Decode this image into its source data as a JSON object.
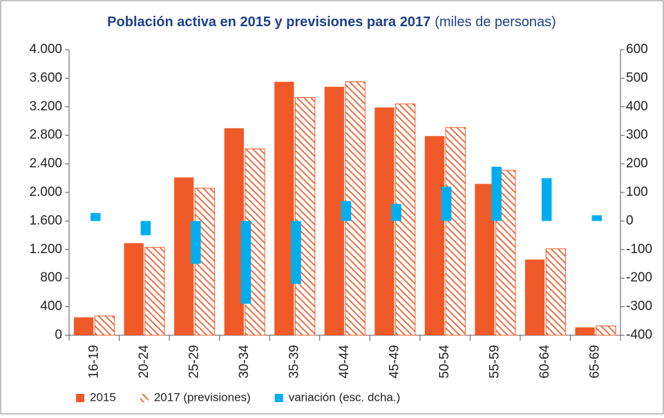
{
  "chart_data": {
    "type": "bar",
    "title": "Población activa en 2015 y previsiones para 2017",
    "subtitle": "(miles de personas)",
    "categories": [
      "16-19",
      "20-24",
      "25-29",
      "30-34",
      "35-39",
      "40-44",
      "45-49",
      "50-54",
      "55-59",
      "60-64",
      "65-69"
    ],
    "series": [
      {
        "name": "2015",
        "color": "#f05a28",
        "values": [
          250,
          1290,
          2210,
          2900,
          3550,
          3480,
          3190,
          2790,
          2120,
          1060,
          110
        ]
      },
      {
        "name": "2017 (previsiones)",
        "color": "#f05a28",
        "pattern": "hatch",
        "values": [
          270,
          1230,
          2060,
          2610,
          3330,
          3550,
          3240,
          2910,
          2310,
          1210,
          130
        ]
      },
      {
        "name": "variación (esc. dcha.)",
        "color": "#00aeef",
        "axis": "y2",
        "values": [
          28,
          -50,
          -150,
          -290,
          -220,
          70,
          60,
          120,
          190,
          150,
          20
        ]
      }
    ],
    "ylim": [
      0,
      4000
    ],
    "yticks": [
      {
        "value": 0,
        "label": "0"
      },
      {
        "value": 400,
        "label": "400"
      },
      {
        "value": 800,
        "label": "800"
      },
      {
        "value": 1200,
        "label": "1.200"
      },
      {
        "value": 1600,
        "label": "1.600"
      },
      {
        "value": 2000,
        "label": "2.000"
      },
      {
        "value": 2400,
        "label": "2.400"
      },
      {
        "value": 2800,
        "label": "2.800"
      },
      {
        "value": 3200,
        "label": "3.200"
      },
      {
        "value": 3600,
        "label": "3.600"
      },
      {
        "value": 4000,
        "label": "4.000"
      }
    ],
    "y2lim": [
      -400,
      600
    ],
    "y2ticks": [
      -400,
      -300,
      -200,
      -100,
      0,
      100,
      200,
      300,
      400,
      500,
      600
    ],
    "grid": false,
    "legend": "bottom"
  }
}
